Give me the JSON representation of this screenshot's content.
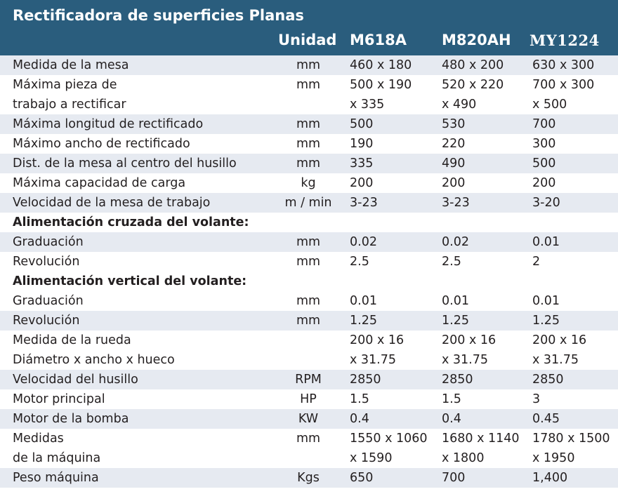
{
  "title": "Rectificadora  de superficies Planas",
  "header": {
    "unit": "Unidad",
    "models": [
      "M618A",
      "M820AH",
      "MY1224"
    ]
  },
  "rows": [
    {
      "label": "Medida de la mesa",
      "unit": "mm",
      "m1": "460 x 180",
      "m2": "480 x 200",
      "m3": "630 x 300",
      "shade": true
    },
    {
      "label": "Máxima pieza de",
      "unit": "mm",
      "m1": "500 x 190",
      "m2": "520 x 220",
      "m3": "700 x 300",
      "shade": false
    },
    {
      "label": "trabajo a rectificar",
      "unit": "",
      "m1": "x 335",
      "m2": "x 490",
      "m3": "x 500",
      "shade": false
    },
    {
      "label": "Máxima longitud de rectificado",
      "unit": "mm",
      "m1": "500",
      "m2": "530",
      "m3": "700",
      "shade": true
    },
    {
      "label": "Máximo ancho de rectificado",
      "unit": "mm",
      "m1": "190",
      "m2": "220",
      "m3": "300",
      "shade": false
    },
    {
      "label": "Dist. de la mesa al centro del husillo",
      "unit": "mm",
      "m1": "335",
      "m2": "490",
      "m3": "500",
      "shade": true
    },
    {
      "label": "Máxima capacidad de carga",
      "unit": "kg",
      "m1": "200",
      "m2": "200",
      "m3": "200",
      "shade": false
    },
    {
      "label": "Velocidad de la mesa de trabajo",
      "unit": "m / min",
      "m1": "3-23",
      "m2": "3-23",
      "m3": "3-20",
      "shade": true
    },
    {
      "label": "Alimentación cruzada del volante:",
      "unit": "",
      "m1": "",
      "m2": "",
      "m3": "",
      "section": true
    },
    {
      "label": "Graduación",
      "unit": "mm",
      "m1": "0.02",
      "m2": "0.02",
      "m3": "0.01",
      "shade": true
    },
    {
      "label": "Revolución",
      "unit": "mm",
      "m1": "2.5",
      "m2": "2.5",
      "m3": "2",
      "shade": false
    },
    {
      "label": "Alimentación vertical del volante:",
      "unit": "",
      "m1": "",
      "m2": "",
      "m3": "",
      "section": true
    },
    {
      "label": "Graduación",
      "unit": "mm",
      "m1": "0.01",
      "m2": "0.01",
      "m3": "0.01",
      "shade": false
    },
    {
      "label": "Revolución",
      "unit": "mm",
      "m1": "1.25",
      "m2": "1.25",
      "m3": "1.25",
      "shade": true
    },
    {
      "label": "Medida de la rueda",
      "unit": "",
      "m1": "200 x 16",
      "m2": "200 x 16",
      "m3": "200 x 16",
      "shade": false
    },
    {
      "label": "Diámetro x ancho x hueco",
      "unit": "",
      "m1": "x 31.75",
      "m2": "x 31.75",
      "m3": "x 31.75",
      "shade": false
    },
    {
      "label": "Velocidad del husillo",
      "unit": "RPM",
      "m1": "2850",
      "m2": "2850",
      "m3": "2850",
      "shade": true
    },
    {
      "label": "Motor principal",
      "unit": "HP",
      "m1": "1.5",
      "m2": "1.5",
      "m3": "3",
      "shade": false
    },
    {
      "label": "Motor de la bomba",
      "unit": "KW",
      "m1": "0.4",
      "m2": "0.4",
      "m3": "0.45",
      "shade": true
    },
    {
      "label": "Medidas",
      "unit": "mm",
      "m1": "1550 x 1060",
      "m2": "1680 x 1140",
      "m3": "1780 x 1500",
      "shade": false
    },
    {
      "label": "de la máquina",
      "unit": "",
      "m1": "x 1590",
      "m2": "x 1800",
      "m3": "x 1950",
      "shade": false
    },
    {
      "label": "Peso máquina",
      "unit": "Kgs",
      "m1": "650",
      "m2": "700",
      "m3": "1,400",
      "shade": true
    }
  ],
  "colors": {
    "header_bg": "#2a5d7d",
    "header_text": "#ffffff",
    "row_shade": "#e6eaf1",
    "text": "#231f20"
  }
}
